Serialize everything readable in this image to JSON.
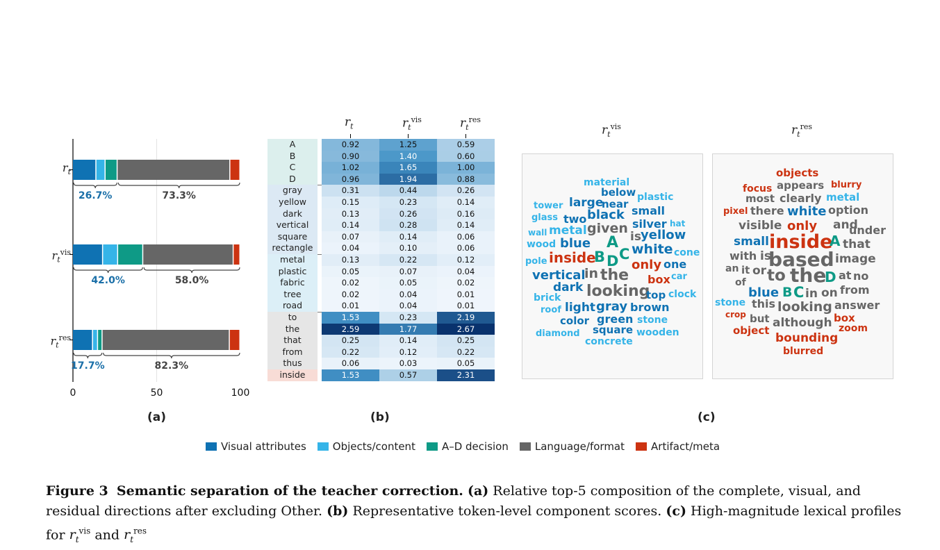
{
  "panel_labels": {
    "a": "(a)",
    "b": "(b)",
    "c": "(c)"
  },
  "colors": {
    "visual_attributes": "#0f72b3",
    "objects_content": "#35b4e8",
    "ad_decision": "#0e9a86",
    "language_format": "#666666",
    "artifact_meta": "#cc3311"
  },
  "chart_data": [
    {
      "type": "bar",
      "orientation": "horizontal-stacked",
      "categories": [
        "r_t",
        "r_t^vis",
        "r_t^res"
      ],
      "category_labels": [
        {
          "base": "r",
          "sub": "t",
          "sup": ""
        },
        {
          "base": "r",
          "sub": "t",
          "sup": "vis"
        },
        {
          "base": "r",
          "sub": "t",
          "sup": "res"
        }
      ],
      "series": [
        {
          "name": "Visual attributes",
          "values": [
            14,
            18,
            12
          ]
        },
        {
          "name": "Objects/content",
          "values": [
            5.5,
            9,
            3
          ]
        },
        {
          "name": "A–D decision",
          "values": [
            7.2,
            15,
            2.7
          ]
        },
        {
          "name": "Language/format",
          "values": [
            67.3,
            54,
            76
          ]
        },
        {
          "name": "Artifact/meta",
          "values": [
            6,
            4,
            6.3
          ]
        }
      ],
      "brace_labels": [
        [
          "26.7%",
          "73.3%"
        ],
        [
          "42.0%",
          "58.0%"
        ],
        [
          "17.7%",
          "82.3%"
        ]
      ],
      "xlim": [
        0,
        100
      ],
      "xticks": [
        "0",
        "50",
        "100"
      ],
      "grid": true
    }
  ],
  "table": {
    "columns": [
      {
        "base": "r",
        "sub": "t",
        "sup": ""
      },
      {
        "base": "r",
        "sub": "t",
        "sup": "vis"
      },
      {
        "base": "r",
        "sub": "t",
        "sup": "res"
      }
    ],
    "groups": [
      {
        "color": "#dcefed",
        "rows": [
          {
            "label": "A",
            "values": [
              "0.92",
              "1.25",
              "0.59"
            ]
          },
          {
            "label": "B",
            "values": [
              "0.90",
              "1.40",
              "0.60"
            ]
          },
          {
            "label": "C",
            "values": [
              "1.02",
              "1.65",
              "1.00"
            ]
          },
          {
            "label": "D",
            "values": [
              "0.96",
              "1.94",
              "0.88"
            ]
          }
        ]
      },
      {
        "color": "#dce9f4",
        "rows": [
          {
            "label": "gray",
            "values": [
              "0.31",
              "0.44",
              "0.26"
            ]
          },
          {
            "label": "yellow",
            "values": [
              "0.15",
              "0.23",
              "0.14"
            ]
          },
          {
            "label": "dark",
            "values": [
              "0.13",
              "0.26",
              "0.16"
            ]
          },
          {
            "label": "vertical",
            "values": [
              "0.14",
              "0.28",
              "0.14"
            ]
          },
          {
            "label": "square",
            "values": [
              "0.07",
              "0.14",
              "0.06"
            ]
          },
          {
            "label": "rectangle",
            "values": [
              "0.04",
              "0.10",
              "0.06"
            ]
          }
        ]
      },
      {
        "color": "#dceff7",
        "rows": [
          {
            "label": "metal",
            "values": [
              "0.13",
              "0.22",
              "0.12"
            ]
          },
          {
            "label": "plastic",
            "values": [
              "0.05",
              "0.07",
              "0.04"
            ]
          },
          {
            "label": "fabric",
            "values": [
              "0.02",
              "0.05",
              "0.02"
            ]
          },
          {
            "label": "tree",
            "values": [
              "0.02",
              "0.04",
              "0.01"
            ]
          },
          {
            "label": "road",
            "values": [
              "0.01",
              "0.04",
              "0.01"
            ]
          }
        ]
      },
      {
        "color": "#e6e6e6",
        "rows": [
          {
            "label": "to",
            "values": [
              "1.53",
              "0.23",
              "2.19"
            ]
          },
          {
            "label": "the",
            "values": [
              "2.59",
              "1.77",
              "2.67"
            ]
          },
          {
            "label": "that",
            "values": [
              "0.25",
              "0.14",
              "0.25"
            ]
          },
          {
            "label": "from",
            "values": [
              "0.22",
              "0.12",
              "0.22"
            ]
          },
          {
            "label": "thus",
            "values": [
              "0.06",
              "0.03",
              "0.05"
            ]
          }
        ]
      },
      {
        "color": "#f8dcd6",
        "rows": [
          {
            "label": "inside",
            "values": [
              "1.53",
              "0.57",
              "2.31"
            ]
          }
        ]
      }
    ]
  },
  "wordclouds": {
    "vis": {
      "title": {
        "base": "r",
        "sub": "t",
        "sup": "vis"
      },
      "words": [
        {
          "t": "material",
          "c": "o"
        },
        {
          "t": "below",
          "c": "v"
        },
        {
          "t": "plastic",
          "c": "o"
        },
        {
          "t": "large",
          "c": "v"
        },
        {
          "t": "near",
          "c": "v"
        },
        {
          "t": "tower",
          "c": "o"
        },
        {
          "t": "glass",
          "c": "o"
        },
        {
          "t": "two",
          "c": "v"
        },
        {
          "t": "black",
          "c": "v"
        },
        {
          "t": "small",
          "c": "v"
        },
        {
          "t": "wall",
          "c": "o"
        },
        {
          "t": "metal",
          "c": "o"
        },
        {
          "t": "given",
          "c": "g"
        },
        {
          "t": "silver",
          "c": "v"
        },
        {
          "t": "hat",
          "c": "o"
        },
        {
          "t": "wood",
          "c": "o"
        },
        {
          "t": "blue",
          "c": "v"
        },
        {
          "t": "A",
          "c": "a"
        },
        {
          "t": "is",
          "c": "g"
        },
        {
          "t": "yellow",
          "c": "v"
        },
        {
          "t": "white",
          "c": "v"
        },
        {
          "t": "cone",
          "c": "o"
        },
        {
          "t": "pole",
          "c": "o"
        },
        {
          "t": "inside",
          "c": "r"
        },
        {
          "t": "B",
          "c": "a"
        },
        {
          "t": "D",
          "c": "a"
        },
        {
          "t": "C",
          "c": "a"
        },
        {
          "t": "only",
          "c": "r"
        },
        {
          "t": "one",
          "c": "v"
        },
        {
          "t": "vertical",
          "c": "v"
        },
        {
          "t": "in",
          "c": "g"
        },
        {
          "t": "the",
          "c": "g"
        },
        {
          "t": "box",
          "c": "r"
        },
        {
          "t": "car",
          "c": "o"
        },
        {
          "t": "dark",
          "c": "v"
        },
        {
          "t": "looking",
          "c": "g"
        },
        {
          "t": "top",
          "c": "v"
        },
        {
          "t": "clock",
          "c": "o"
        },
        {
          "t": "brick",
          "c": "o"
        },
        {
          "t": "roof",
          "c": "o"
        },
        {
          "t": "light",
          "c": "v"
        },
        {
          "t": "gray",
          "c": "v"
        },
        {
          "t": "brown",
          "c": "v"
        },
        {
          "t": "color",
          "c": "v"
        },
        {
          "t": "green",
          "c": "v"
        },
        {
          "t": "stone",
          "c": "o"
        },
        {
          "t": "square",
          "c": "v"
        },
        {
          "t": "diamond",
          "c": "o"
        },
        {
          "t": "wooden",
          "c": "o"
        },
        {
          "t": "concrete",
          "c": "o"
        }
      ]
    },
    "res": {
      "title": {
        "base": "r",
        "sub": "t",
        "sup": "res"
      },
      "words": [
        {
          "t": "objects",
          "c": "r"
        },
        {
          "t": "focus",
          "c": "r"
        },
        {
          "t": "appears",
          "c": "g"
        },
        {
          "t": "blurry",
          "c": "r"
        },
        {
          "t": "most",
          "c": "g"
        },
        {
          "t": "clearly",
          "c": "g"
        },
        {
          "t": "metal",
          "c": "o"
        },
        {
          "t": "pixel",
          "c": "r"
        },
        {
          "t": "there",
          "c": "g"
        },
        {
          "t": "white",
          "c": "v"
        },
        {
          "t": "option",
          "c": "g"
        },
        {
          "t": "visible",
          "c": "g"
        },
        {
          "t": "only",
          "c": "r"
        },
        {
          "t": "and",
          "c": "g"
        },
        {
          "t": "under",
          "c": "g"
        },
        {
          "t": "small",
          "c": "v"
        },
        {
          "t": "inside",
          "c": "r"
        },
        {
          "t": "A",
          "c": "a"
        },
        {
          "t": "that",
          "c": "g"
        },
        {
          "t": "with",
          "c": "g"
        },
        {
          "t": "is",
          "c": "g"
        },
        {
          "t": "based",
          "c": "g"
        },
        {
          "t": "image",
          "c": "g"
        },
        {
          "t": "an",
          "c": "g"
        },
        {
          "t": "it",
          "c": "g"
        },
        {
          "t": "or",
          "c": "g"
        },
        {
          "t": "to",
          "c": "g"
        },
        {
          "t": "the",
          "c": "g"
        },
        {
          "t": "D",
          "c": "a"
        },
        {
          "t": "at",
          "c": "g"
        },
        {
          "t": "no",
          "c": "g"
        },
        {
          "t": "of",
          "c": "g"
        },
        {
          "t": "blue",
          "c": "v"
        },
        {
          "t": "B",
          "c": "a"
        },
        {
          "t": "C",
          "c": "a"
        },
        {
          "t": "in",
          "c": "g"
        },
        {
          "t": "on",
          "c": "g"
        },
        {
          "t": "from",
          "c": "g"
        },
        {
          "t": "stone",
          "c": "o"
        },
        {
          "t": "this",
          "c": "g"
        },
        {
          "t": "looking",
          "c": "g"
        },
        {
          "t": "answer",
          "c": "g"
        },
        {
          "t": "crop",
          "c": "r"
        },
        {
          "t": "but",
          "c": "g"
        },
        {
          "t": "box",
          "c": "r"
        },
        {
          "t": "although",
          "c": "g"
        },
        {
          "t": "zoom",
          "c": "r"
        },
        {
          "t": "object",
          "c": "r"
        },
        {
          "t": "bounding",
          "c": "r"
        },
        {
          "t": "blurred",
          "c": "r"
        }
      ]
    }
  },
  "legend": [
    {
      "label": "Visual attributes",
      "color": "#0f72b3"
    },
    {
      "label": "Objects/content",
      "color": "#35b4e8"
    },
    {
      "label": "A–D decision",
      "color": "#0e9a86"
    },
    {
      "label": "Language/format",
      "color": "#666666"
    },
    {
      "label": "Artifact/meta",
      "color": "#cc3311"
    }
  ],
  "caption": {
    "figure_label": "Figure 3",
    "title": "Semantic separation of the teacher correction.",
    "a_label": "(a)",
    "a_text": "Relative top-5 composition of the complete, visual, and residual directions after excluding Other.",
    "b_label": "(b)",
    "b_text": "Representative token-level component scores.",
    "c_label": "(c)",
    "c_text": "High-magnitude lexical profiles for",
    "c_sym1": {
      "base": "r",
      "sub": "t",
      "sup": "vis"
    },
    "c_and": "and",
    "c_sym2": {
      "base": "r",
      "sub": "t",
      "sup": "res"
    }
  }
}
